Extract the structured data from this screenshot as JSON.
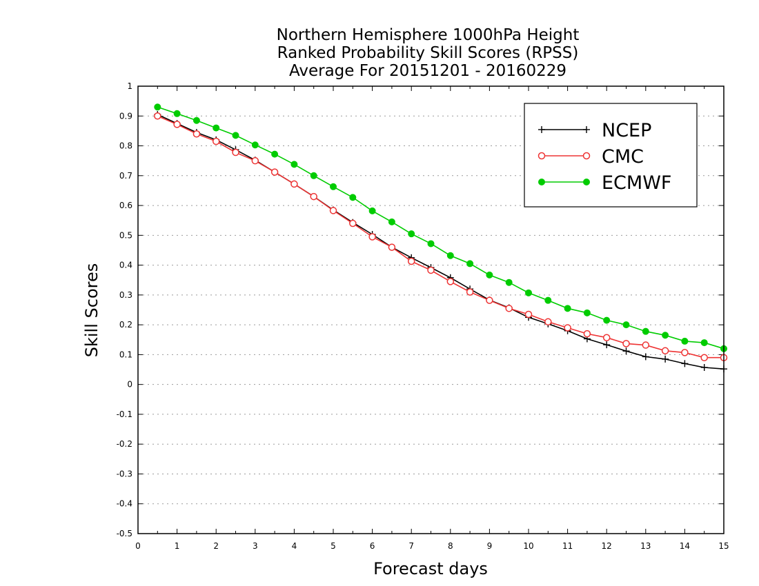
{
  "chart_data": {
    "type": "line",
    "title": [
      "Northern Hemisphere 1000hPa Height",
      "Ranked Probability Skill Scores (RPSS)",
      "Average For 20151201 - 20160229"
    ],
    "xlabel": "Forecast days",
    "ylabel": "Skill Scores",
    "xlim": [
      0,
      15
    ],
    "ylim": [
      -0.5,
      1
    ],
    "xticks": [
      0,
      1,
      2,
      3,
      4,
      5,
      6,
      7,
      8,
      9,
      10,
      11,
      12,
      13,
      14,
      15
    ],
    "xtick_labels": [
      "0",
      "1",
      "2",
      "3",
      "4",
      "5",
      "6",
      "7",
      "8",
      "9",
      "10",
      "11",
      "12",
      "13",
      "14",
      "15"
    ],
    "yticks": [
      -0.5,
      -0.4,
      -0.3,
      -0.2,
      -0.1,
      0,
      0.1,
      0.2,
      0.3,
      0.4,
      0.5,
      0.6,
      0.7,
      0.8,
      0.9,
      1
    ],
    "ytick_labels": [
      "-0.5",
      "-0.4",
      "-0.3",
      "-0.2",
      "-0.1",
      "0",
      "0.1",
      "0.2",
      "0.3",
      "0.4",
      "0.5",
      "0.6",
      "0.7",
      "0.8",
      "0.9",
      "1"
    ],
    "grid": "horizontal-dotted",
    "legend_position": "top-right",
    "x": [
      0.5,
      1,
      1.5,
      2,
      2.5,
      3,
      3.5,
      4,
      4.5,
      5,
      5.5,
      6,
      6.5,
      7,
      7.5,
      8,
      8.5,
      9,
      9.5,
      10,
      10.5,
      11,
      11.5,
      12,
      12.5,
      13,
      13.5,
      14,
      14.5,
      15
    ],
    "series": [
      {
        "name": "NCEP",
        "color": "#000000",
        "marker": "plus",
        "values": [
          0.905,
          0.875,
          0.845,
          0.82,
          0.787,
          0.752,
          0.712,
          0.672,
          0.63,
          0.585,
          0.543,
          0.503,
          0.46,
          0.425,
          0.392,
          0.358,
          0.32,
          0.283,
          0.257,
          0.225,
          0.203,
          0.18,
          0.153,
          0.133,
          0.112,
          0.093,
          0.085,
          0.07,
          0.057,
          0.052
        ]
      },
      {
        "name": "CMC",
        "color": "#ee3333",
        "marker": "open-circle",
        "values": [
          0.9,
          0.872,
          0.84,
          0.815,
          0.778,
          0.75,
          0.712,
          0.672,
          0.63,
          0.583,
          0.54,
          0.495,
          0.46,
          0.413,
          0.383,
          0.345,
          0.31,
          0.282,
          0.255,
          0.235,
          0.21,
          0.19,
          0.17,
          0.157,
          0.137,
          0.132,
          0.113,
          0.107,
          0.09,
          0.09
        ]
      },
      {
        "name": "ECMWF",
        "color": "#00cc00",
        "marker": "filled-circle",
        "values": [
          0.93,
          0.908,
          0.885,
          0.86,
          0.835,
          0.803,
          0.772,
          0.738,
          0.7,
          0.663,
          0.627,
          0.582,
          0.545,
          0.505,
          0.472,
          0.432,
          0.405,
          0.367,
          0.342,
          0.307,
          0.282,
          0.255,
          0.24,
          0.215,
          0.2,
          0.178,
          0.165,
          0.145,
          0.14,
          0.12
        ]
      }
    ]
  }
}
